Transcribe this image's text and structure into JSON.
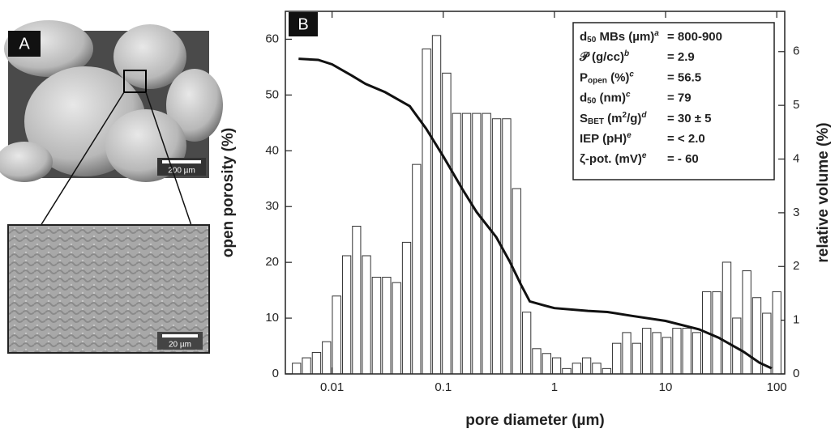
{
  "panel_a": {
    "label": "A",
    "scale_top": "200 µm",
    "scale_bottom": "20 µm"
  },
  "chart_data": {
    "type": "histogram",
    "panel_label": "B",
    "xlabel": "pore diameter (µm)",
    "ylabel": "open porosity (%)",
    "y2label": "relative volume (%)",
    "xscale": "log",
    "xlim": [
      0.0038,
      118
    ],
    "xticks": [
      0.01,
      0.1,
      1,
      10,
      100
    ],
    "ylim": [
      0,
      65
    ],
    "yticks": [
      0,
      10,
      20,
      30,
      40,
      50,
      60
    ],
    "y2lim": [
      0,
      6.75
    ],
    "y2ticks": [
      0,
      1,
      2,
      3,
      4,
      5,
      6
    ],
    "series": [
      {
        "type": "histogram",
        "axis": "y2",
        "color": "#ffffff",
        "bins": [
          0.00432,
          0.00531,
          0.00653,
          0.00804,
          0.00989,
          0.0122,
          0.015,
          0.0184,
          0.0226,
          0.0279,
          0.0343,
          0.0422,
          0.0519,
          0.0638,
          0.0785,
          0.0966,
          0.119,
          0.146,
          0.18,
          0.221,
          0.272,
          0.335,
          0.412,
          0.507,
          0.624,
          0.767,
          0.944,
          1.16,
          1.43,
          1.76,
          2.16,
          2.66,
          3.27,
          4.03,
          4.95,
          6.1,
          7.5,
          9.23,
          11.4,
          14,
          17.2,
          21.1,
          26,
          32,
          39.4,
          48.4,
          59.6,
          73.3,
          90.2,
          111
        ],
        "values": [
          0.2,
          0.3,
          0.4,
          0.6,
          1.45,
          2.2,
          2.75,
          2.2,
          1.8,
          1.8,
          1.7,
          2.45,
          3.9,
          6.05,
          6.3,
          5.6,
          4.85,
          4.85,
          4.85,
          4.85,
          4.75,
          4.75,
          3.45,
          1.15,
          0.47,
          0.38,
          0.3,
          0.1,
          0.2,
          0.3,
          0.2,
          0.1,
          0.57,
          0.77,
          0.57,
          0.85,
          0.77,
          0.68,
          0.85,
          0.85,
          0.77,
          1.53,
          1.53,
          2.08,
          1.04,
          1.92,
          1.42,
          1.13,
          1.53
        ]
      },
      {
        "type": "line",
        "color": "#111111",
        "x": [
          0.005,
          0.0075,
          0.01,
          0.015,
          0.02,
          0.03,
          0.05,
          0.07,
          0.1,
          0.15,
          0.2,
          0.3,
          0.4,
          0.5,
          0.6,
          0.8,
          1,
          2,
          3,
          5,
          10,
          20,
          30,
          50,
          70,
          90
        ],
        "values": [
          56.5,
          56.3,
          55.5,
          53.5,
          52,
          50.5,
          48,
          44,
          39,
          33,
          29,
          24.5,
          20,
          16,
          13,
          12.3,
          11.8,
          11.3,
          11.1,
          10.4,
          9.5,
          8,
          6.5,
          4,
          2,
          1
        ]
      }
    ],
    "annotation_rows": [
      {
        "label": [
          "d",
          "50",
          " MBs (µm)",
          "a"
        ],
        "value": "= 800-900"
      },
      {
        "label": [
          "𝒫 (g/cc)",
          "b"
        ],
        "value": "= 2.9"
      },
      {
        "label": [
          "P",
          "open",
          " (%)",
          "c"
        ],
        "value": "= 56.5"
      },
      {
        "label": [
          "d",
          "50",
          " (nm)",
          "c"
        ],
        "value": "= 79"
      },
      {
        "label": [
          "S",
          "BET",
          " (m",
          "2",
          "/g)",
          "d"
        ],
        "value": "= 30 ± 5"
      },
      {
        "label": [
          "IEP (pH)",
          "e"
        ],
        "value": "= < 2.0"
      },
      {
        "label": [
          "ζ-pot. (mV)",
          "e"
        ],
        "value": "= - 60"
      }
    ]
  }
}
